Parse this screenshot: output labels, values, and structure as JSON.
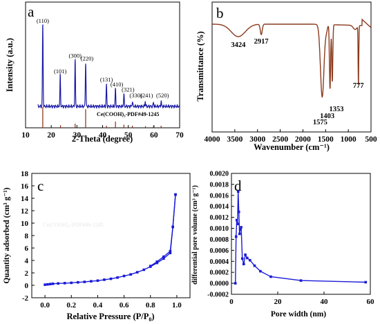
{
  "colors": {
    "xrd_line": "#1a1aa6",
    "ftir_line": "#8b3a1e",
    "ref_line": "#8b2a12",
    "ref_text": "#8b2a12",
    "iso_line": "#1a1ad8",
    "bjh_line": "#1a1ad8",
    "axis": "#000000"
  },
  "chart_data": [
    {
      "panel": "a",
      "type": "line",
      "xlabel": "2-Theta (degree)",
      "ylabel": "Intensity (a.u.)",
      "xlim": [
        10,
        70
      ],
      "xticks": [
        10,
        20,
        30,
        40,
        50,
        60,
        70
      ],
      "y_ticks_shown": false,
      "peaks": [
        {
          "x": 16.7,
          "label": "(110)",
          "height": 1.0
        },
        {
          "x": 23.5,
          "label": "(101)",
          "height": 0.38
        },
        {
          "x": 29.3,
          "label": "(300)",
          "height": 0.57
        },
        {
          "x": 33.4,
          "label": "(220)",
          "height": 0.54
        },
        {
          "x": 41.5,
          "label": "(131)",
          "height": 0.27
        },
        {
          "x": 45.0,
          "label": "(410)",
          "height": 0.21
        },
        {
          "x": 48.3,
          "label": "(321)",
          "height": 0.15
        },
        {
          "x": 51.6,
          "label": "(330)",
          "height": 0.06
        },
        {
          "x": 56.6,
          "label": "(241)",
          "height": 0.06
        },
        {
          "x": 59.8,
          "label": "",
          "height": 0.05
        },
        {
          "x": 62.8,
          "label": "(520)",
          "height": 0.06
        }
      ],
      "reference": {
        "label": "Ce(COOH)₃-PDF#49-1245",
        "lines": [
          {
            "x": 16.7,
            "h": 1.0
          },
          {
            "x": 23.6,
            "h": 0.12
          },
          {
            "x": 29.3,
            "h": 0.2
          },
          {
            "x": 33.4,
            "h": 0.9
          },
          {
            "x": 41.5,
            "h": 0.1
          },
          {
            "x": 45.0,
            "h": 0.3
          },
          {
            "x": 48.3,
            "h": 0.15
          },
          {
            "x": 51.6,
            "h": 0.1
          },
          {
            "x": 56.7,
            "h": 0.08
          },
          {
            "x": 59.8,
            "h": 0.08
          },
          {
            "x": 62.8,
            "h": 0.1
          }
        ]
      }
    },
    {
      "panel": "b",
      "type": "line",
      "xlabel": "Wavenumber (cm⁻¹)",
      "ylabel": "Transmittance (%)",
      "xlim": [
        4000,
        500
      ],
      "xticks": [
        4000,
        3500,
        3000,
        2500,
        2000,
        1500,
        1000,
        500
      ],
      "y_ticks_shown": false,
      "annotations": [
        {
          "x": 3424,
          "label": "3424"
        },
        {
          "x": 2917,
          "label": "2917"
        },
        {
          "x": 1575,
          "label": "1575"
        },
        {
          "x": 1403,
          "label": "1403"
        },
        {
          "x": 1353,
          "label": "1353"
        },
        {
          "x": 777,
          "label": "777"
        }
      ]
    },
    {
      "panel": "c",
      "type": "line",
      "xlabel": "Relative Pressure (P/P",
      "xlabel_sub": "0",
      "xlabel_end": ")",
      "ylabel": "Quantity adsorbed (cm³ g⁻¹)",
      "xlim": [
        -0.1,
        1.1
      ],
      "ylim": [
        -2,
        18
      ],
      "xticks": [
        0.0,
        0.2,
        0.4,
        0.6,
        0.8,
        1.0
      ],
      "yticks": [
        -2,
        0,
        2,
        4,
        6,
        8,
        10,
        12,
        14,
        16,
        18
      ],
      "watermark": "Ce(COOH)₃-PDF#49-1245",
      "series": [
        {
          "x": [
            0.0,
            0.02,
            0.04,
            0.06,
            0.1,
            0.15,
            0.2,
            0.25,
            0.3,
            0.35,
            0.4,
            0.45,
            0.5,
            0.55,
            0.6,
            0.65,
            0.7,
            0.75,
            0.8,
            0.85,
            0.9,
            0.95,
            0.97,
            0.99
          ],
          "y": [
            0.1,
            0.15,
            0.2,
            0.25,
            0.3,
            0.35,
            0.4,
            0.48,
            0.55,
            0.65,
            0.75,
            0.9,
            1.05,
            1.25,
            1.5,
            1.75,
            2.1,
            2.5,
            3.0,
            3.6,
            4.3,
            5.2,
            9.4,
            14.6
          ]
        },
        {
          "x": [
            0.99,
            0.97,
            0.95,
            0.9,
            0.85,
            0.8
          ],
          "y": [
            14.6,
            9.4,
            5.5,
            4.6,
            3.8,
            3.1
          ]
        }
      ]
    },
    {
      "panel": "d",
      "type": "line",
      "xlabel": "Pore width (nm)",
      "ylabel": "differential pore volume (cm³ g⁻¹)",
      "xlim": [
        0,
        60
      ],
      "ylim": [
        -0.0002,
        0.002
      ],
      "xticks": [
        0,
        20,
        40,
        60
      ],
      "yticks": [
        "-0.0002",
        "0.0000",
        "0.0002",
        "0.0004",
        "0.0006",
        "0.0008",
        "0.0010",
        "0.0012",
        "0.0014",
        "0.0016",
        "0.0018",
        "0.0020"
      ],
      "series": [
        {
          "x": [
            1.7,
            2.0,
            2.3,
            2.6,
            2.9,
            3.2,
            3.5,
            3.8,
            4.2,
            4.7,
            5.3,
            6.0,
            6.8,
            8.0,
            10.0,
            12.5,
            17.0,
            30.0,
            58.0
          ],
          "y": [
            0.0,
            0.00085,
            0.00115,
            0.00108,
            0.00167,
            0.0013,
            0.0009,
            0.00098,
            0.00102,
            0.00045,
            0.00035,
            0.00052,
            0.00046,
            0.00042,
            0.00032,
            0.00022,
            0.00012,
            5e-05,
            2e-05
          ]
        }
      ]
    }
  ],
  "panel_letters": [
    "a",
    "b",
    "c",
    "d"
  ]
}
